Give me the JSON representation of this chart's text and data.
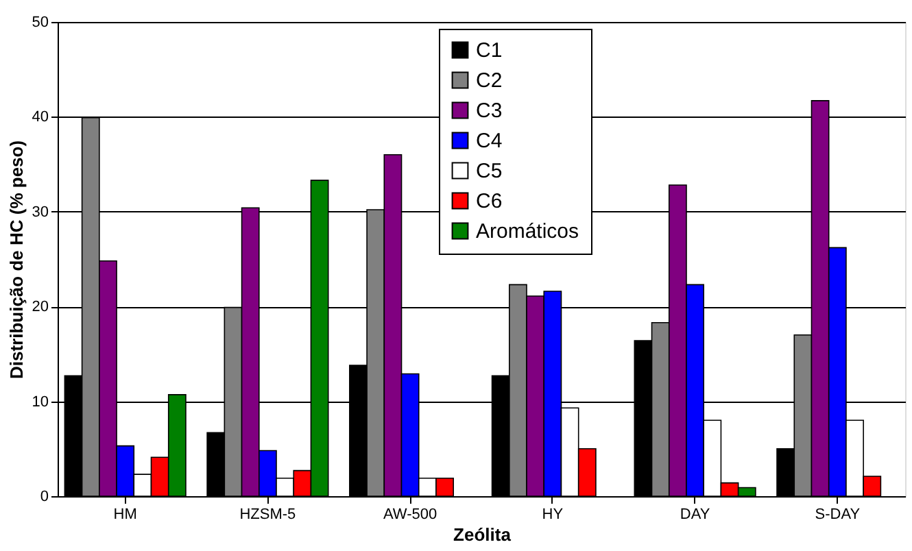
{
  "chart_data": {
    "type": "bar",
    "xlabel": "Zeólita",
    "ylabel": "Distribuição de HC (% peso)",
    "categories": [
      "HM",
      "HZSM-5",
      "AW-500",
      "HY",
      "DAY",
      "S-DAY"
    ],
    "series": [
      {
        "name": "C1",
        "color": "#000000",
        "values": [
          12.7,
          6.7,
          13.8,
          12.7,
          16.4,
          5.0
        ]
      },
      {
        "name": "C2",
        "color": "#808080",
        "values": [
          39.9,
          19.9,
          30.2,
          22.3,
          18.3,
          17.0
        ]
      },
      {
        "name": "C3",
        "color": "#800080",
        "values": [
          24.8,
          30.4,
          36.0,
          21.1,
          32.8,
          41.7
        ]
      },
      {
        "name": "C4",
        "color": "#0000ff",
        "values": [
          5.3,
          4.8,
          12.9,
          21.6,
          22.3,
          26.2
        ]
      },
      {
        "name": "C5",
        "color": "#ffffff",
        "values": [
          2.3,
          1.9,
          1.9,
          9.3,
          8.0,
          8.0
        ]
      },
      {
        "name": "C6",
        "color": "#ff0000",
        "values": [
          4.1,
          2.7,
          1.9,
          5.0,
          1.4,
          2.1
        ]
      },
      {
        "name": "Aromáticos",
        "color": "#008000",
        "values": [
          10.7,
          33.3,
          null,
          null,
          0.9,
          null
        ]
      }
    ],
    "ylim": [
      0,
      50
    ],
    "yticks": [
      0,
      10,
      20,
      30,
      40,
      50
    ],
    "grid": "y",
    "legend": "top"
  }
}
